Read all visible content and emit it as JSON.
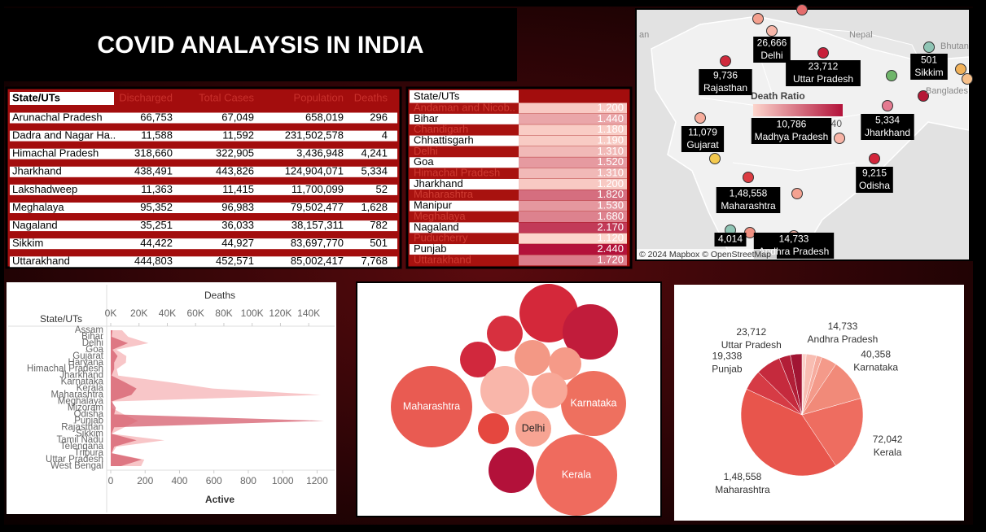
{
  "title": "COVID ANALAYSIS IN INDIA",
  "state_table": {
    "columns": [
      "State/UTs",
      "Discharged",
      "Total Cases",
      "Population",
      "Deaths"
    ],
    "rows": [
      [
        "Arunachal Pradesh",
        "66,753",
        "67,049",
        "658,019",
        "296"
      ],
      [
        "Dadra and Nagar Ha..",
        "11,588",
        "11,592",
        "231,502,578",
        "4"
      ],
      [
        "Himachal Pradesh",
        "318,660",
        "322,905",
        "3,436,948",
        "4,241"
      ],
      [
        "Jharkhand",
        "438,491",
        "443,826",
        "124,904,071",
        "5,334"
      ],
      [
        "Lakshadweep",
        "11,363",
        "11,415",
        "11,700,099",
        "52"
      ],
      [
        "Meghalaya",
        "95,352",
        "96,983",
        "79,502,477",
        "1,628"
      ],
      [
        "Nagaland",
        "35,251",
        "36,033",
        "38,157,311",
        "782"
      ],
      [
        "Sikkim",
        "44,422",
        "44,927",
        "83,697,770",
        "501"
      ],
      [
        "Uttarakhand",
        "444,803",
        "452,571",
        "85,002,417",
        "7,768"
      ]
    ]
  },
  "ratio_table": {
    "header": "State/UTs",
    "rows": [
      [
        "Andaman and Nicob..",
        "1.200"
      ],
      [
        "Bihar",
        "1.440"
      ],
      [
        "Chandigarh",
        "1.180"
      ],
      [
        "Chhattisgarh",
        "1.190"
      ],
      [
        "Delhi",
        "1.310"
      ],
      [
        "Goa",
        "1.520"
      ],
      [
        "Himachal Pradesh",
        "1.310"
      ],
      [
        "Jharkhand",
        "1.200"
      ],
      [
        "Maharashtra",
        "1.820"
      ],
      [
        "Manipur",
        "1.530"
      ],
      [
        "Meghalaya",
        "1.680"
      ],
      [
        "Nagaland",
        "2.170"
      ],
      [
        "Puducherry",
        "1.120"
      ],
      [
        "Punjab",
        "2.440"
      ],
      [
        "Uttarakhand",
        "1.720"
      ]
    ]
  },
  "map": {
    "place_names": [
      "an",
      "Nepal",
      "Bhutan",
      "Banglades"
    ],
    "legend_title": "Death Ratio",
    "legend_min": "1.120",
    "legend_max": "2.440",
    "labels": [
      {
        "value": "26,666",
        "name": "Delhi"
      },
      {
        "value": "23,712",
        "name": "Uttar Pradesh"
      },
      {
        "value": "9,736",
        "name": "Rajasthan"
      },
      {
        "value": "501",
        "name": "Sikkim"
      },
      {
        "value": "11,079",
        "name": "Gujarat"
      },
      {
        "value": "10,786",
        "name": "Madhya Pradesh"
      },
      {
        "value": "5,334",
        "name": "Jharkhand"
      },
      {
        "value": "9,215",
        "name": "Odisha"
      },
      {
        "value": "1,48,558",
        "name": "Maharashtra"
      },
      {
        "value": "4,014"
      },
      {
        "value": "14,733",
        "name": "Andhra Pradesh"
      }
    ],
    "attribution": "© 2024 Mapbox © OpenStreetMap"
  },
  "chart_data": [
    {
      "type": "area",
      "y_label": "State/UTs",
      "x_label": "Deaths",
      "x2_label": "Active",
      "categories": [
        "Assam",
        "Bihar",
        "Delhi",
        "Goa",
        "Gujarat",
        "Haryana",
        "Himachal Pradesh",
        "Jharkhand",
        "Karnataka",
        "Kerala",
        "Maharashtra",
        "Meghalaya",
        "Mizoram",
        "Odisha",
        "Punjab",
        "Rajasthan",
        "Sikkim",
        "Tamil Nadu",
        "Telengana",
        "Tripura",
        "Uttar Pradesh",
        "West Bengal"
      ],
      "xlim": [
        0,
        152000
      ],
      "xticks": [
        {
          "value": 0,
          "label": "0K"
        },
        {
          "value": 20000,
          "label": "20K"
        },
        {
          "value": 40000,
          "label": "40K"
        },
        {
          "value": 60000,
          "label": "60K"
        },
        {
          "value": 80000,
          "label": "80K"
        },
        {
          "value": 100000,
          "label": "100K"
        },
        {
          "value": 120000,
          "label": "120K"
        },
        {
          "value": 140000,
          "label": "140K"
        }
      ],
      "x2lim": [
        0,
        1250
      ],
      "x2ticks": [
        0,
        200,
        400,
        600,
        800,
        1000,
        1200
      ],
      "series": [
        {
          "color": "#f6b3b5",
          "values": [
            8000,
            12300,
            26666,
            4000,
            11079,
            10700,
            4241,
            5334,
            40358,
            72042,
            148558,
            1628,
            730,
            9215,
            19338,
            9736,
            501,
            38000,
            4014,
            940,
            23712,
            21500
          ]
        },
        {
          "color": "#d65c6c",
          "axis": "x2",
          "values": [
            10,
            5,
            100,
            10,
            40,
            20,
            20,
            5,
            80,
            150,
            120,
            5,
            30,
            20,
            1240,
            20,
            5,
            150,
            20,
            5,
            180,
            60
          ]
        }
      ]
    },
    {
      "type": "bubble",
      "categories": [
        "Maharashtra",
        "Kerala",
        "Karnataka",
        "Delhi",
        null,
        null,
        null,
        null,
        null,
        null,
        null,
        null,
        null,
        null
      ],
      "values": [
        2500,
        2500,
        1600,
        484,
        1296,
        1156,
        484,
        484,
        484,
        400,
        900,
        484,
        361,
        784
      ],
      "colors": [
        "#e95b52",
        "#ef6b5e",
        "#ee705f",
        "#f7a493",
        "#d4283a",
        "#c11c3b",
        "#d7303f",
        "#d1283d",
        "#f39885",
        "#f59a88",
        "#f9b6aa",
        "#f8a898",
        "#e5473f",
        "#b3113a"
      ]
    },
    {
      "type": "pie",
      "categories": [
        null,
        null,
        null,
        "Andhra Pradesh",
        "Karnataka",
        "Kerala",
        "Maharashtra",
        "Punjab",
        "Uttar Pradesh",
        null,
        null
      ],
      "values": [
        4014,
        9736,
        5334,
        14733,
        40358,
        72042,
        148558,
        19338,
        23712,
        10786,
        11079
      ],
      "value_labels": [
        null,
        null,
        null,
        "14,733",
        "40,358",
        "72,042",
        "1,48,558",
        "19,338",
        "23,712",
        null,
        null
      ],
      "colors": [
        "#fbd0c8",
        "#f8bdb2",
        "#f6ab9e",
        "#f49a8a",
        "#f18a79",
        "#ee6d60",
        "#e8554c",
        "#d63b45",
        "#c52a3d",
        "#b21e37",
        "#a11533"
      ]
    }
  ]
}
